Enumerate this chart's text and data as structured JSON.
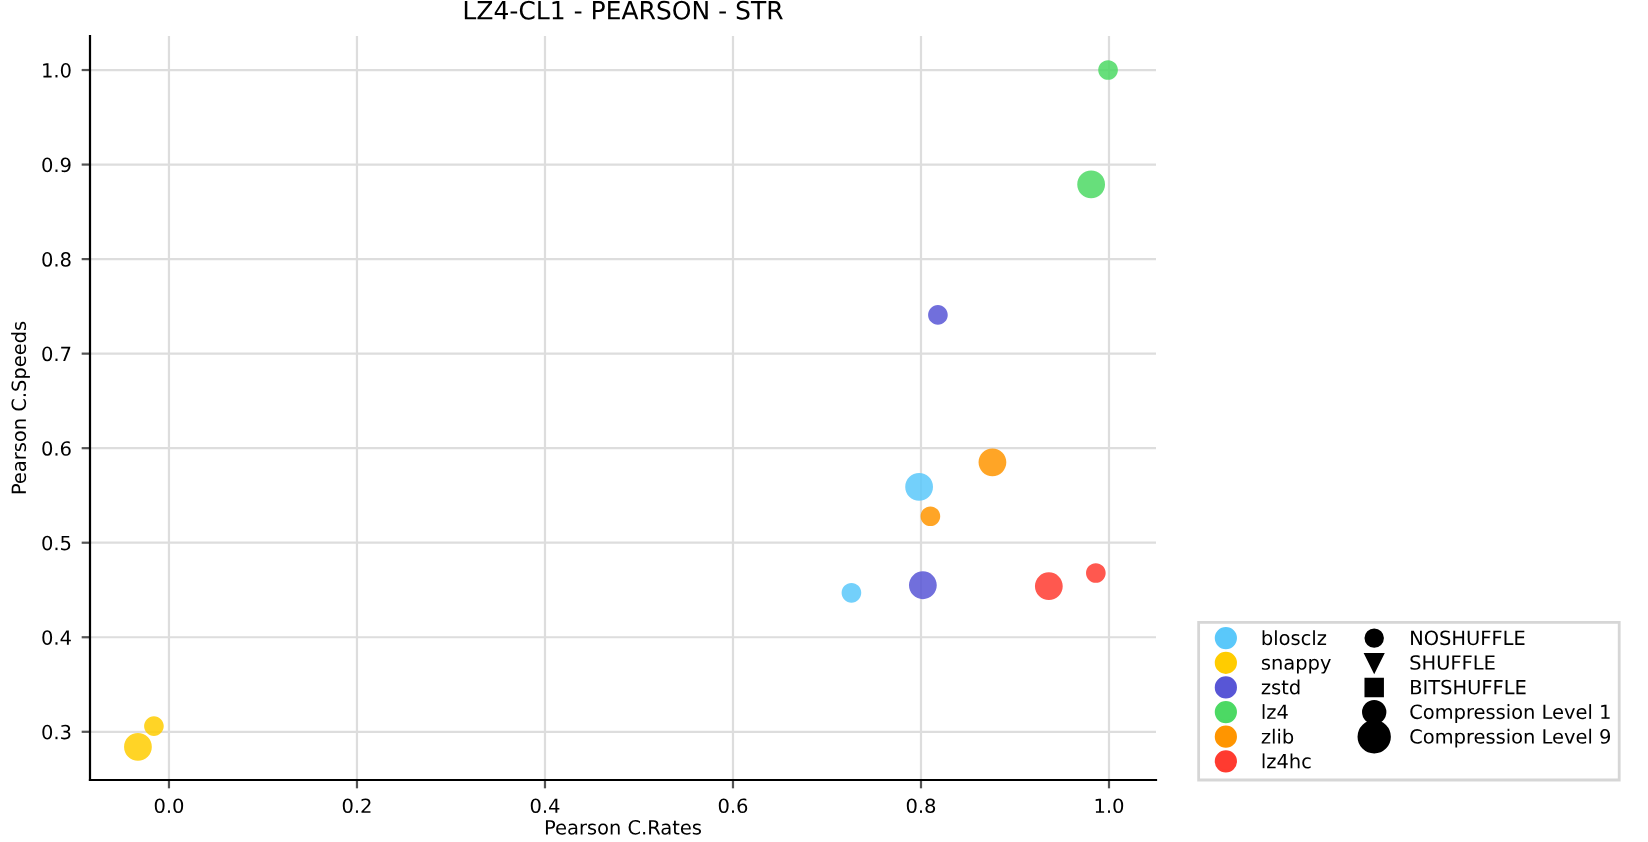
{
  "chart_data": {
    "type": "bubble",
    "title": "LZ4-CL1 - PEARSON - STR",
    "xlabel": "Pearson C.Rates",
    "ylabel": "Pearson C.Speeds",
    "xlim": [
      -0.084,
      1.05
    ],
    "ylim": [
      0.249,
      1.036
    ],
    "xticks": [
      {
        "value": 0,
        "label": "0.0"
      },
      0.2,
      0.4,
      0.6,
      0.8,
      {
        "value": 1,
        "label": "1.0"
      }
    ],
    "yticks": [
      0.3,
      0.4,
      0.5,
      0.6,
      0.7,
      0.8,
      0.9,
      {
        "value": 1,
        "label": "1.0"
      }
    ],
    "grid": true,
    "legend": "bottom right",
    "marker": "circle",
    "series": [
      {
        "name": "blosclz",
        "color": "#5ac8fa",
        "x": [
          0.726,
          0.798
        ],
        "values": [
          0.447,
          0.559
        ],
        "sizes": [
          0.5,
          1
        ]
      },
      {
        "name": "snappy",
        "color": "#ffcc00",
        "x": [
          -0.016,
          -0.033
        ],
        "values": [
          0.306,
          0.284
        ],
        "sizes": [
          0.5,
          1
        ]
      },
      {
        "name": "zstd",
        "color": "#5856d6",
        "x": [
          0.818,
          0.802
        ],
        "values": [
          0.741,
          0.455
        ],
        "sizes": [
          0.5,
          1
        ]
      },
      {
        "name": "lz4",
        "color": "#4cd964",
        "x": [
          0.999,
          0.981
        ],
        "values": [
          1.0,
          0.879
        ],
        "sizes": [
          0.5,
          1
        ]
      },
      {
        "name": "zlib",
        "color": "#ff9500",
        "x": [
          0.81,
          0.876
        ],
        "values": [
          0.528,
          0.585
        ],
        "sizes": [
          0.5,
          1
        ]
      },
      {
        "name": "lz4hc",
        "color": "#ff3b30",
        "x": [
          0.986,
          0.936
        ],
        "values": [
          0.468,
          0.454
        ],
        "sizes": [
          0.5,
          1
        ]
      },
      {
        "name": "NOSHUFFLE",
        "color": "#000000",
        "marker": "circle"
      },
      {
        "name": "SHUFFLE",
        "color": "#000000",
        "marker": "triangle"
      },
      {
        "name": "BITSHUFFLE",
        "color": "#000000",
        "marker": "square"
      }
    ],
    "size_legend": [
      {
        "value": 0.5,
        "label": "Compression Level 1"
      },
      {
        "value": 1,
        "label": "Compression Level 9"
      }
    ]
  }
}
